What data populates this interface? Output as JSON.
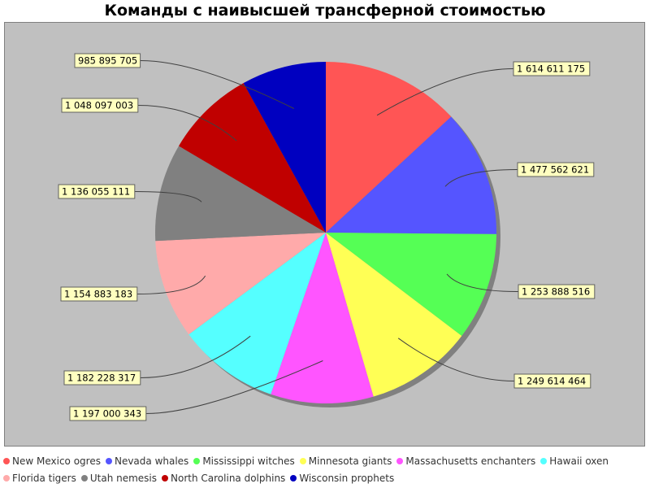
{
  "chart_data": {
    "type": "pie",
    "title": "Команды с наивысшей трансферной стоимостью",
    "legend_position": "bottom",
    "slices": [
      {
        "label": "New Mexico ogres",
        "value": 1614611175,
        "value_label": "1 614 611 175",
        "color": "#ff5555"
      },
      {
        "label": "Nevada whales",
        "value": 1477562621,
        "value_label": "1 477 562 621",
        "color": "#5555ff"
      },
      {
        "label": "Mississippi witches",
        "value": 1253888516,
        "value_label": "1 253 888 516",
        "color": "#55ff55"
      },
      {
        "label": "Minnesota giants",
        "value": 1249614464,
        "value_label": "1 249 614 464",
        "color": "#ffff55"
      },
      {
        "label": "Massachusetts enchanters",
        "value": 1197000343,
        "value_label": "1 197 000 343",
        "color": "#ff55ff"
      },
      {
        "label": "Hawaii oxen",
        "value": 1182228317,
        "value_label": "1 182 228 317",
        "color": "#55ffff"
      },
      {
        "label": "Florida tigers",
        "value": 1154883183,
        "value_label": "1 154 883 183",
        "color": "#ffaaaa"
      },
      {
        "label": "Utah nemesis",
        "value": 1136055111,
        "value_label": "1 136 055 111",
        "color": "#808080"
      },
      {
        "label": "North Carolina dolphins",
        "value": 1048097003,
        "value_label": "1 048 097 003",
        "color": "#c00000"
      },
      {
        "label": "Wisconsin prophets",
        "value": 985895705,
        "value_label": "985 895 705",
        "color": "#0000c0"
      }
    ]
  }
}
